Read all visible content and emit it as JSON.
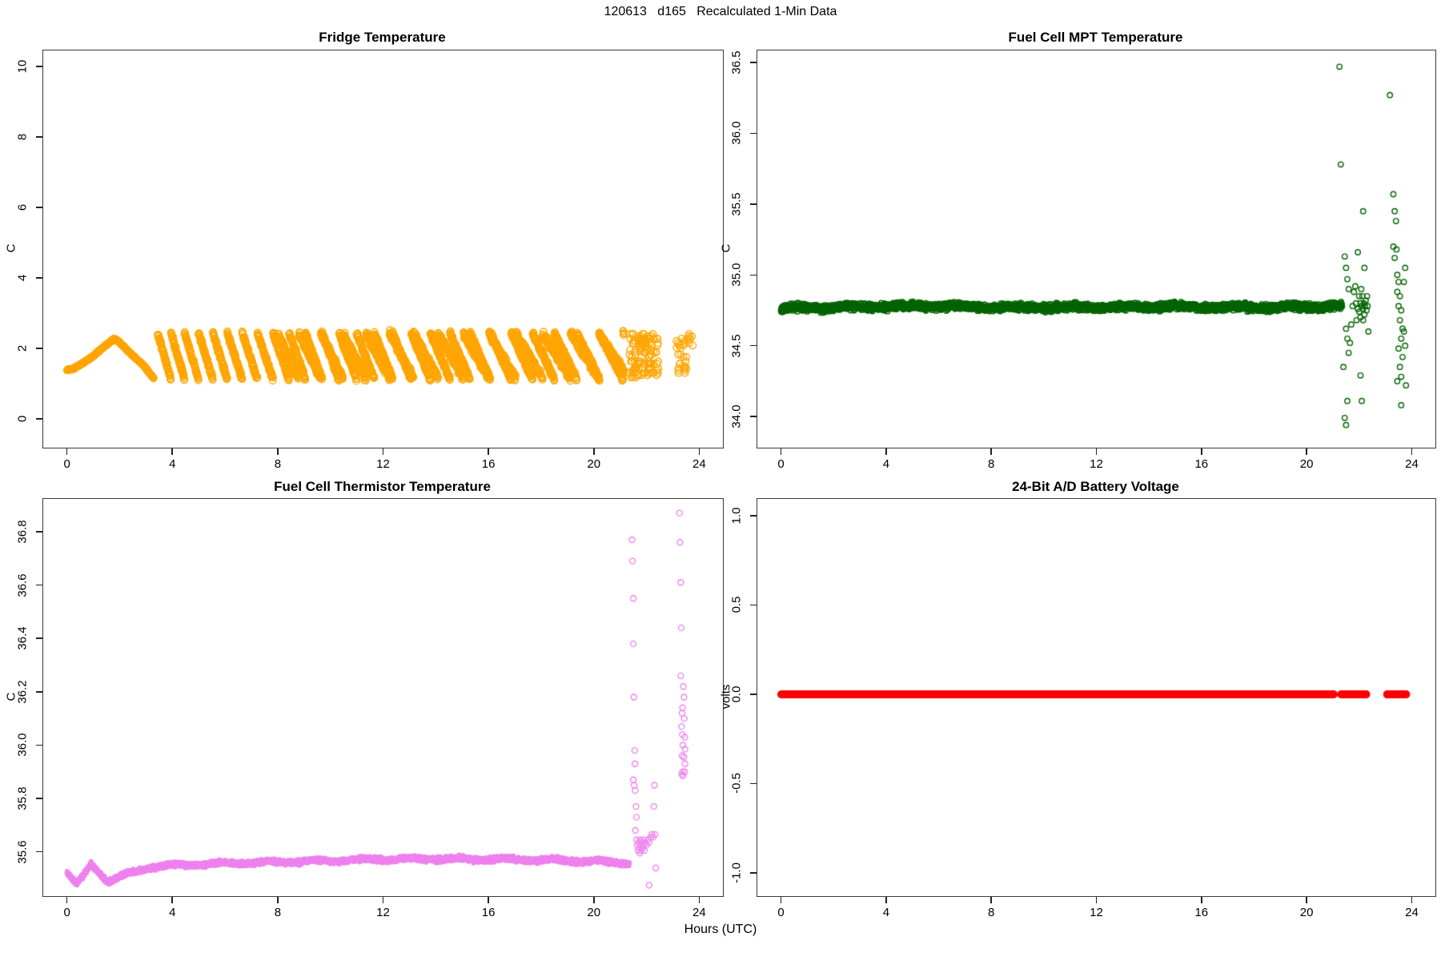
{
  "page": {
    "title": "120613   d165   Recalculated 1-Min Data",
    "xlabel": "Hours (UTC)"
  },
  "chart_data": [
    {
      "type": "scatter",
      "title": "Fridge Temperature",
      "ylabel": "C",
      "color": "#FFA500",
      "xlim": [
        -0.9,
        24.9
      ],
      "ylim": [
        -0.82,
        10.45
      ],
      "xticks": {
        "values": [
          0,
          4,
          8,
          12,
          16,
          20,
          24
        ],
        "labels": [
          "0",
          "4",
          "8",
          "12",
          "16",
          "20",
          "24"
        ]
      },
      "yticks": {
        "values": [
          0,
          2,
          4,
          6,
          8,
          10
        ],
        "labels": [
          "0",
          "2",
          "4",
          "6",
          "8",
          "10"
        ]
      },
      "series": [
        {
          "kind": "trend",
          "marker": "fill",
          "r": 4.5,
          "rate": 240,
          "noise": 0.012,
          "waypoints": [
            [
              0,
              1.38
            ],
            [
              0.25,
              1.42
            ],
            [
              0.6,
              1.58
            ],
            [
              1.0,
              1.78
            ],
            [
              1.4,
              2.04
            ],
            [
              1.78,
              2.26
            ],
            [
              1.95,
              2.2
            ],
            [
              2.4,
              1.86
            ],
            [
              2.9,
              1.52
            ],
            [
              3.3,
              1.14
            ]
          ]
        },
        {
          "kind": "sawtooth",
          "marker": "open",
          "r": 4.2,
          "x0": 3.45,
          "x1": 21.15,
          "rate": 130,
          "y_min": 1.12,
          "y_max": 2.44,
          "period0": 0.5,
          "period_slope": 0.045,
          "noise": 0.035
        },
        {
          "kind": "sawtooth",
          "marker": "open",
          "r": 4.2,
          "x0": 8.0,
          "x1": 21.15,
          "rate": 110,
          "y_min": 1.15,
          "y_max": 2.42,
          "period0": 0.8,
          "period_slope": 0.03,
          "noise": 0.05
        },
        {
          "kind": "cloud",
          "marker": "open",
          "r": 4.2,
          "x0": 21.35,
          "x1": 22.45,
          "y0": 1.13,
          "y1": 2.44,
          "n": 120,
          "quantize_y": 0.065
        },
        {
          "kind": "cloud",
          "marker": "open",
          "r": 4.2,
          "x0": 23.12,
          "x1": 23.8,
          "y0": 2.0,
          "y1": 2.44,
          "n": 18,
          "quantize_y": 0.065
        },
        {
          "kind": "cloud",
          "marker": "open",
          "r": 4.2,
          "x0": 23.18,
          "x1": 23.62,
          "y0": 1.18,
          "y1": 1.85,
          "n": 16,
          "quantize_y": 0.065
        }
      ]
    },
    {
      "type": "scatter",
      "title": "Fuel Cell MPT Temperature",
      "ylabel": "C",
      "color": "#006400",
      "xlim": [
        -0.9,
        24.9
      ],
      "ylim": [
        33.78,
        36.585
      ],
      "xticks": {
        "values": [
          0,
          4,
          8,
          12,
          16,
          20,
          24
        ],
        "labels": [
          "0",
          "4",
          "8",
          "12",
          "16",
          "20",
          "24"
        ]
      },
      "yticks": {
        "values": [
          34.0,
          34.5,
          35.0,
          35.5,
          36.0,
          36.5
        ],
        "labels": [
          "34.0",
          "34.5",
          "35.0",
          "35.5",
          "36.0",
          "36.5"
        ]
      },
      "series": [
        {
          "kind": "trend",
          "marker": "open",
          "r": 3.2,
          "rate": 150,
          "noise": 0.012,
          "wobble": {
            "amp": 0.006,
            "period": 2.1
          },
          "waypoints": [
            [
              0,
              34.765
            ],
            [
              3,
              34.775
            ],
            [
              6,
              34.78
            ],
            [
              9,
              34.77
            ],
            [
              12,
              34.772
            ],
            [
              15,
              34.775
            ],
            [
              18,
              34.77
            ],
            [
              21.35,
              34.78
            ]
          ]
        },
        {
          "kind": "points",
          "marker": "open",
          "r": 3.2,
          "xy": [
            [
              21.25,
              36.47
            ],
            [
              21.3,
              35.78
            ],
            [
              21.45,
              35.13
            ],
            [
              21.5,
              35.05
            ],
            [
              21.55,
              34.97
            ],
            [
              21.6,
              34.9
            ],
            [
              21.5,
              34.62
            ],
            [
              21.55,
              34.55
            ],
            [
              21.6,
              34.45
            ],
            [
              21.65,
              34.52
            ],
            [
              21.4,
              34.35
            ],
            [
              21.55,
              34.11
            ],
            [
              21.45,
              33.99
            ],
            [
              21.5,
              33.94
            ],
            [
              21.7,
              34.65
            ],
            [
              21.75,
              34.78
            ],
            [
              21.8,
              34.88
            ],
            [
              21.85,
              34.92
            ],
            [
              21.88,
              34.8
            ],
            [
              21.9,
              34.68
            ],
            [
              21.95,
              34.76
            ],
            [
              21.95,
              35.16
            ],
            [
              22.0,
              34.85
            ],
            [
              22.0,
              34.74
            ],
            [
              22.05,
              34.8
            ],
            [
              22.05,
              34.7
            ],
            [
              22.08,
              34.9
            ],
            [
              22.1,
              34.78
            ],
            [
              22.12,
              34.85
            ],
            [
              22.15,
              34.76
            ],
            [
              22.15,
              34.68
            ],
            [
              22.18,
              34.8
            ],
            [
              22.2,
              34.72
            ],
            [
              22.22,
              34.78
            ],
            [
              22.25,
              34.82
            ],
            [
              22.28,
              34.75
            ],
            [
              22.3,
              34.85
            ],
            [
              22.32,
              34.78
            ],
            [
              22.05,
              34.29
            ],
            [
              22.1,
              34.11
            ],
            [
              22.15,
              35.45
            ],
            [
              22.2,
              35.05
            ],
            [
              22.35,
              34.6
            ]
          ]
        },
        {
          "kind": "points",
          "marker": "open",
          "r": 3.2,
          "xy": [
            [
              23.17,
              36.27
            ],
            [
              23.3,
              35.57
            ],
            [
              23.35,
              35.45
            ],
            [
              23.3,
              35.2
            ],
            [
              23.35,
              35.12
            ],
            [
              23.42,
              35.18
            ],
            [
              23.45,
              35.0
            ],
            [
              23.5,
              34.95
            ],
            [
              23.45,
              34.88
            ],
            [
              23.55,
              34.85
            ],
            [
              23.5,
              34.78
            ],
            [
              23.6,
              34.75
            ],
            [
              23.55,
              34.68
            ],
            [
              23.65,
              34.62
            ],
            [
              23.6,
              34.55
            ],
            [
              23.5,
              34.48
            ],
            [
              23.65,
              34.42
            ],
            [
              23.55,
              34.35
            ],
            [
              23.6,
              34.28
            ],
            [
              23.7,
              34.6
            ],
            [
              23.7,
              34.95
            ],
            [
              23.75,
              34.5
            ],
            [
              23.45,
              34.25
            ],
            [
              23.6,
              34.08
            ],
            [
              23.78,
              34.22
            ],
            [
              23.75,
              35.05
            ],
            [
              23.4,
              35.38
            ]
          ]
        }
      ]
    },
    {
      "type": "scatter",
      "title": "Fuel Cell Thermistor Temperature",
      "ylabel": "C",
      "color": "#EE82EE",
      "xlim": [
        -0.9,
        24.9
      ],
      "ylim": [
        35.434,
        36.923
      ],
      "xticks": {
        "values": [
          0,
          4,
          8,
          12,
          16,
          20,
          24
        ],
        "labels": [
          "0",
          "4",
          "8",
          "12",
          "16",
          "20",
          "24"
        ]
      },
      "yticks": {
        "values": [
          35.6,
          35.8,
          36.0,
          36.2,
          36.4,
          36.6,
          36.8
        ],
        "labels": [
          "35.6",
          "35.8",
          "36.0",
          "36.2",
          "36.4",
          "36.6",
          "36.8"
        ]
      },
      "series": [
        {
          "kind": "trend",
          "marker": "fill",
          "r": 3,
          "rate": 200,
          "noise": 0.0045,
          "wobble": {
            "amp": 0.004,
            "period": 1.8
          },
          "waypoints": [
            [
              0,
              35.52
            ],
            [
              0.18,
              35.497
            ],
            [
              0.38,
              35.478
            ],
            [
              0.6,
              35.508
            ],
            [
              0.92,
              35.553
            ],
            [
              1.2,
              35.527
            ],
            [
              1.55,
              35.49
            ],
            [
              1.9,
              35.5
            ],
            [
              2.4,
              35.52
            ],
            [
              3.2,
              35.543
            ],
            [
              4.5,
              35.552
            ],
            [
              6,
              35.557
            ],
            [
              8,
              35.562
            ],
            [
              10,
              35.567
            ],
            [
              12,
              35.572
            ],
            [
              14,
              35.574
            ],
            [
              16,
              35.572
            ],
            [
              18,
              35.57
            ],
            [
              19.5,
              35.566
            ],
            [
              20.5,
              35.562
            ],
            [
              21.35,
              35.557
            ]
          ]
        },
        {
          "kind": "points",
          "marker": "open",
          "r": 3.5,
          "xy": [
            [
              21.45,
              36.77
            ],
            [
              21.47,
              36.69
            ],
            [
              21.5,
              36.55
            ],
            [
              21.5,
              36.38
            ],
            [
              21.52,
              36.18
            ],
            [
              21.55,
              35.98
            ],
            [
              21.56,
              35.93
            ],
            [
              21.5,
              35.87
            ],
            [
              21.53,
              35.85
            ],
            [
              21.57,
              35.83
            ],
            [
              21.6,
              35.77
            ],
            [
              21.62,
              35.73
            ],
            [
              21.58,
              35.68
            ],
            [
              21.62,
              35.645
            ],
            [
              21.65,
              35.625
            ],
            [
              21.68,
              35.605
            ],
            [
              21.7,
              35.635
            ],
            [
              21.72,
              35.615
            ],
            [
              21.74,
              35.595
            ],
            [
              21.76,
              35.645
            ],
            [
              21.78,
              35.625
            ],
            [
              21.8,
              35.605
            ],
            [
              21.82,
              35.635
            ],
            [
              21.85,
              35.615
            ],
            [
              21.88,
              35.645
            ],
            [
              21.9,
              35.625
            ],
            [
              21.92,
              35.605
            ],
            [
              21.95,
              35.635
            ],
            [
              22.0,
              35.625
            ],
            [
              22.05,
              35.645
            ],
            [
              22.1,
              35.635
            ],
            [
              22.15,
              35.655
            ],
            [
              22.2,
              35.665
            ],
            [
              22.25,
              35.655
            ],
            [
              22.28,
              35.77
            ],
            [
              22.3,
              35.85
            ],
            [
              22.32,
              35.665
            ],
            [
              22.35,
              35.54
            ],
            [
              22.1,
              35.475
            ]
          ]
        },
        {
          "kind": "points",
          "marker": "open",
          "r": 3.5,
          "xy": [
            [
              23.25,
              36.87
            ],
            [
              23.27,
              36.76
            ],
            [
              23.3,
              36.61
            ],
            [
              23.32,
              36.44
            ],
            [
              23.3,
              36.26
            ],
            [
              23.4,
              36.22
            ],
            [
              23.42,
              36.18
            ],
            [
              23.37,
              36.14
            ],
            [
              23.35,
              36.12
            ],
            [
              23.43,
              36.1
            ],
            [
              23.33,
              36.07
            ],
            [
              23.36,
              36.04
            ],
            [
              23.45,
              36.03
            ],
            [
              23.38,
              36.0
            ],
            [
              23.46,
              35.985
            ],
            [
              23.35,
              35.96
            ],
            [
              23.42,
              35.955
            ],
            [
              23.46,
              35.93
            ],
            [
              23.37,
              35.9
            ],
            [
              23.45,
              35.9
            ],
            [
              23.34,
              35.89
            ],
            [
              23.39,
              35.885
            ]
          ]
        }
      ]
    },
    {
      "type": "scatter",
      "title": "24-Bit A/D Battery Voltage",
      "ylabel": "volts",
      "color": "#FF0000",
      "xlim": [
        -0.9,
        24.9
      ],
      "ylim": [
        -1.13,
        1.094
      ],
      "xticks": {
        "values": [
          0,
          4,
          8,
          12,
          16,
          20,
          24
        ],
        "labels": [
          "0",
          "4",
          "8",
          "12",
          "16",
          "20",
          "24"
        ]
      },
      "yticks": {
        "values": [
          -1.0,
          -0.5,
          0.0,
          0.5,
          1.0
        ],
        "labels": [
          "-1.0",
          "-0.5",
          "0.0",
          "0.5",
          "1.0"
        ]
      },
      "series": [
        {
          "kind": "trend",
          "marker": "fill",
          "r": 4.5,
          "rate": 200,
          "noise": 0,
          "waypoints": [
            [
              0,
              0
            ],
            [
              21.05,
              0
            ]
          ]
        },
        {
          "kind": "trend",
          "marker": "fill",
          "r": 4.5,
          "rate": 200,
          "noise": 0,
          "waypoints": [
            [
              21.3,
              0
            ],
            [
              22.28,
              0
            ]
          ]
        },
        {
          "kind": "trend",
          "marker": "fill",
          "r": 4.5,
          "rate": 200,
          "noise": 0,
          "waypoints": [
            [
              23.05,
              0
            ],
            [
              23.8,
              0
            ]
          ]
        }
      ]
    }
  ]
}
